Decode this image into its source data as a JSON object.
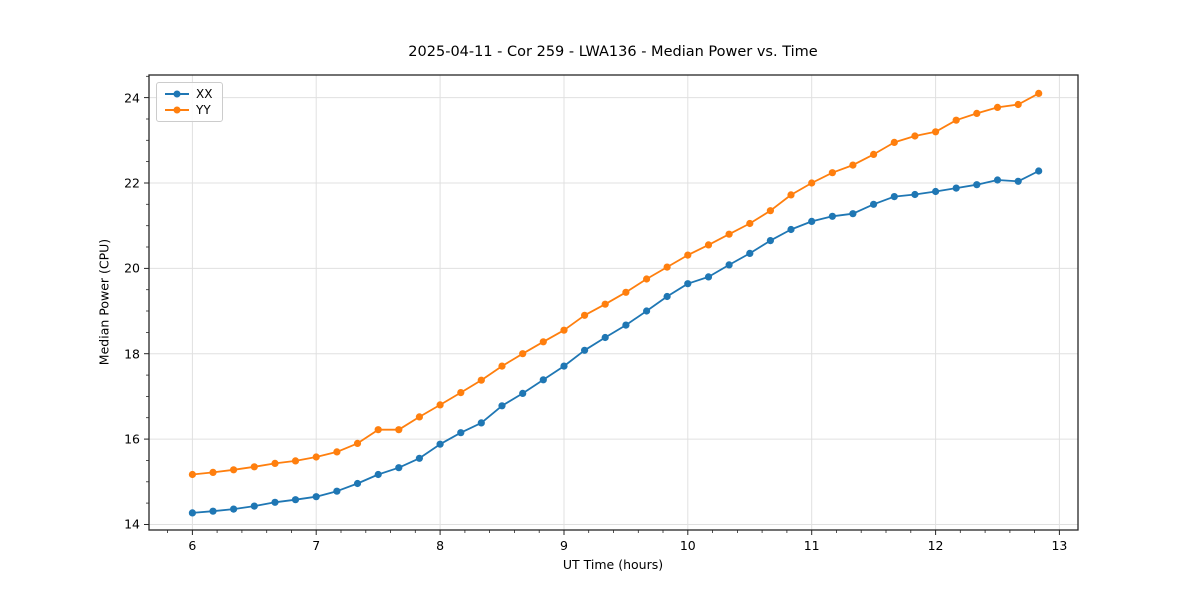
{
  "figure": {
    "title": "2025-04-11 - Cor 259 - LWA136 - Median Power vs. Time"
  },
  "chart_data": {
    "type": "line",
    "title": "2025-04-11 - Cor 259 - LWA136 - Median Power vs. Time",
    "xlabel": "UT Time (hours)",
    "ylabel": "Median Power (CPU)",
    "xlim": [
      5.65,
      13.15
    ],
    "ylim": [
      13.87,
      24.53
    ],
    "xticks": [
      6,
      7,
      8,
      9,
      10,
      11,
      12,
      13
    ],
    "yticks": [
      14,
      16,
      18,
      20,
      22,
      24
    ],
    "x_minor_step": 0.2,
    "y_minor_step": 0.5,
    "grid": true,
    "legend_position": "upper-left",
    "marker": "circle",
    "x": [
      6.0,
      6.167,
      6.333,
      6.5,
      6.667,
      6.833,
      7.0,
      7.167,
      7.333,
      7.5,
      7.667,
      7.833,
      8.0,
      8.167,
      8.333,
      8.5,
      8.667,
      8.833,
      9.0,
      9.167,
      9.333,
      9.5,
      9.667,
      9.833,
      10.0,
      10.167,
      10.333,
      10.5,
      10.667,
      10.833,
      11.0,
      11.167,
      11.333,
      11.5,
      11.667,
      11.833,
      12.0,
      12.167,
      12.333,
      12.5,
      12.667,
      12.833
    ],
    "series": [
      {
        "name": "XX",
        "color": "#1f77b4",
        "values": [
          14.27,
          14.31,
          14.36,
          14.43,
          14.52,
          14.58,
          14.65,
          14.78,
          14.96,
          15.17,
          15.33,
          15.55,
          15.88,
          16.15,
          16.38,
          16.78,
          17.07,
          17.39,
          17.71,
          18.08,
          18.38,
          18.67,
          19.0,
          19.34,
          19.64,
          19.8,
          20.08,
          20.35,
          20.65,
          20.91,
          21.1,
          21.22,
          21.28,
          21.5,
          21.68,
          21.73,
          21.8,
          21.88,
          21.96,
          22.07,
          22.04,
          22.28
        ]
      },
      {
        "name": "YY",
        "color": "#ff7f0e",
        "values": [
          15.17,
          15.22,
          15.28,
          15.35,
          15.43,
          15.49,
          15.58,
          15.7,
          15.9,
          16.22,
          16.22,
          16.52,
          16.8,
          17.09,
          17.38,
          17.71,
          18.0,
          18.28,
          18.55,
          18.9,
          19.16,
          19.44,
          19.75,
          20.03,
          20.31,
          20.55,
          20.8,
          21.05,
          21.35,
          21.72,
          22.0,
          22.24,
          22.42,
          22.67,
          22.95,
          23.1,
          23.2,
          23.47,
          23.63,
          23.77,
          23.84,
          24.1
        ]
      }
    ],
    "colors": {
      "grid": "#e0e0e0",
      "spine": "#262626",
      "background": "#ffffff"
    }
  }
}
